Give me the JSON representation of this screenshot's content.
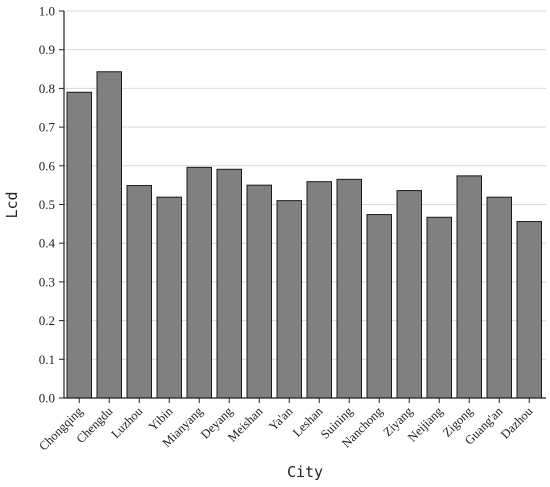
{
  "chart_data": {
    "type": "bar",
    "xlabel": "City",
    "ylabel": "Lcd",
    "ylim": [
      0,
      1.0
    ],
    "yticks": [
      "0.0",
      "0.1",
      "0.2",
      "0.3",
      "0.4",
      "0.5",
      "0.6",
      "0.7",
      "0.8",
      "0.9",
      "1.0"
    ],
    "grid": "horizontal",
    "bar_color": "#808080",
    "categories": [
      "Chongqing",
      "Chengdu",
      "Luzhou",
      "Yibin",
      "Mianyang",
      "Deyang",
      "Meishan",
      "Ya'an",
      "Leshan",
      "Suining",
      "Nanchong",
      "Ziyang",
      "Neijiang",
      "Zigong",
      "Guang'an",
      "Dazhou"
    ],
    "values": [
      0.79,
      0.843,
      0.549,
      0.519,
      0.596,
      0.591,
      0.55,
      0.51,
      0.559,
      0.565,
      0.474,
      0.536,
      0.467,
      0.574,
      0.519,
      0.456
    ]
  }
}
